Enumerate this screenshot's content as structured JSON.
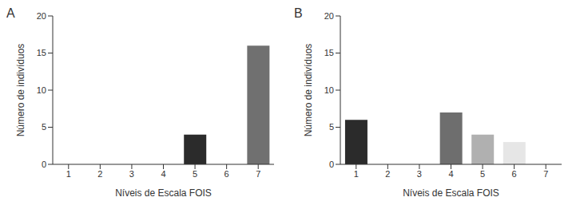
{
  "chart_data": [
    {
      "type": "bar",
      "title": "A",
      "x_label": "Níveis de Escala FOIS",
      "y_label": "Número de indivíduos",
      "categories": [
        "1",
        "2",
        "3",
        "4",
        "5",
        "6",
        "7"
      ],
      "values": [
        0,
        0,
        0,
        0,
        4,
        0,
        16
      ],
      "colors": [
        "#2b2b2b",
        "#2b2b2b",
        "#2b2b2b",
        "#2b2b2b",
        "#2b2b2b",
        "#707070",
        "#707070"
      ],
      "ylim": [
        0,
        20
      ],
      "yticks": [
        0,
        5,
        10,
        15,
        20
      ]
    },
    {
      "type": "bar",
      "title": "B",
      "x_label": "Níveis de Escala FOIS",
      "y_label": "Número de indivíduos",
      "categories": [
        "1",
        "2",
        "3",
        "4",
        "5",
        "6",
        "7"
      ],
      "values": [
        6,
        0,
        0,
        7,
        4,
        3,
        0
      ],
      "colors": [
        "#2b2b2b",
        "#2b2b2b",
        "#2b2b2b",
        "#6e6e6e",
        "#b0b0b0",
        "#e6e6e6",
        "#e6e6e6"
      ],
      "ylim": [
        0,
        20
      ],
      "yticks": [
        0,
        5,
        10,
        15,
        20
      ]
    }
  ]
}
